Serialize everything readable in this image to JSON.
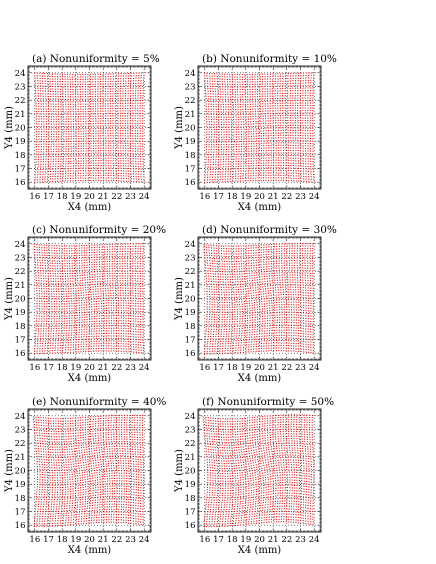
{
  "chart_data": [
    {
      "type": "scatter",
      "title": "(a)  Nonuniformity =  5%",
      "xlabel": "X4 (mm)",
      "ylabel": "Y4 (mm)",
      "xlim": [
        15.5,
        24.5
      ],
      "ylim": [
        15.5,
        24.5
      ],
      "xticks": [
        "16",
        "17",
        "18",
        "19",
        "20",
        "21",
        "22",
        "23",
        "24"
      ],
      "yticks": [
        "16",
        "17",
        "18",
        "19",
        "20",
        "21",
        "22",
        "23",
        "24"
      ],
      "grid": true,
      "marker_color": "#e31a1c",
      "data_range": {
        "x": [
          16.0,
          24.0
        ],
        "y": [
          16.0,
          24.0
        ]
      },
      "nonuniformity_percent": 5
    },
    {
      "type": "scatter",
      "title": "(b)  Nonuniformity = 10%",
      "xlabel": "X4 (mm)",
      "ylabel": "Y4 (mm)",
      "xlim": [
        15.5,
        24.5
      ],
      "ylim": [
        15.5,
        24.5
      ],
      "xticks": [
        "16",
        "17",
        "18",
        "19",
        "20",
        "21",
        "22",
        "23",
        "24"
      ],
      "yticks": [
        "16",
        "17",
        "18",
        "19",
        "20",
        "21",
        "22",
        "23",
        "24"
      ],
      "grid": true,
      "marker_color": "#e31a1c",
      "data_range": {
        "x": [
          16.0,
          24.0
        ],
        "y": [
          16.0,
          24.0
        ]
      },
      "nonuniformity_percent": 10
    },
    {
      "type": "scatter",
      "title": "(c)  Nonuniformity = 20%",
      "xlabel": "X4 (mm)",
      "ylabel": "Y4 (mm)",
      "xlim": [
        15.5,
        24.5
      ],
      "ylim": [
        15.5,
        24.5
      ],
      "xticks": [
        "16",
        "17",
        "18",
        "19",
        "20",
        "21",
        "22",
        "23",
        "24"
      ],
      "yticks": [
        "16",
        "17",
        "18",
        "19",
        "20",
        "21",
        "22",
        "23",
        "24"
      ],
      "grid": true,
      "marker_color": "#e31a1c",
      "data_range": {
        "x": [
          16.0,
          24.0
        ],
        "y": [
          16.0,
          24.0
        ]
      },
      "nonuniformity_percent": 20
    },
    {
      "type": "scatter",
      "title": "(d)  Nonuniformity = 30%",
      "xlabel": "X4 (mm)",
      "ylabel": "Y4 (mm)",
      "xlim": [
        15.5,
        24.5
      ],
      "ylim": [
        15.5,
        24.5
      ],
      "xticks": [
        "16",
        "17",
        "18",
        "19",
        "20",
        "21",
        "22",
        "23",
        "24"
      ],
      "yticks": [
        "16",
        "17",
        "18",
        "19",
        "20",
        "21",
        "22",
        "23",
        "24"
      ],
      "grid": true,
      "marker_color": "#e31a1c",
      "data_range": {
        "x": [
          16.0,
          24.0
        ],
        "y": [
          16.0,
          24.0
        ]
      },
      "nonuniformity_percent": 30
    },
    {
      "type": "scatter",
      "title": "(e)  Nonuniformity = 40%",
      "xlabel": "X4 (mm)",
      "ylabel": "Y4 (mm)",
      "xlim": [
        15.5,
        24.5
      ],
      "ylim": [
        15.5,
        24.5
      ],
      "xticks": [
        "16",
        "17",
        "18",
        "19",
        "20",
        "21",
        "22",
        "23",
        "24"
      ],
      "yticks": [
        "16",
        "17",
        "18",
        "19",
        "20",
        "21",
        "22",
        "23",
        "24"
      ],
      "grid": true,
      "marker_color": "#e31a1c",
      "data_range": {
        "x": [
          16.0,
          24.0
        ],
        "y": [
          16.0,
          24.0
        ]
      },
      "nonuniformity_percent": 40
    },
    {
      "type": "scatter",
      "title": "(f)  Nonuniformity = 50%",
      "xlabel": "X4 (mm)",
      "ylabel": "Y4 (mm)",
      "xlim": [
        15.5,
        24.5
      ],
      "ylim": [
        15.5,
        24.5
      ],
      "xticks": [
        "16",
        "17",
        "18",
        "19",
        "20",
        "21",
        "22",
        "23",
        "24"
      ],
      "yticks": [
        "16",
        "17",
        "18",
        "19",
        "20",
        "21",
        "22",
        "23",
        "24"
      ],
      "grid": true,
      "marker_color": "#e31a1c",
      "data_range": {
        "x": [
          16.0,
          24.0
        ],
        "y": [
          16.0,
          24.0
        ]
      },
      "nonuniformity_percent": 50
    }
  ]
}
